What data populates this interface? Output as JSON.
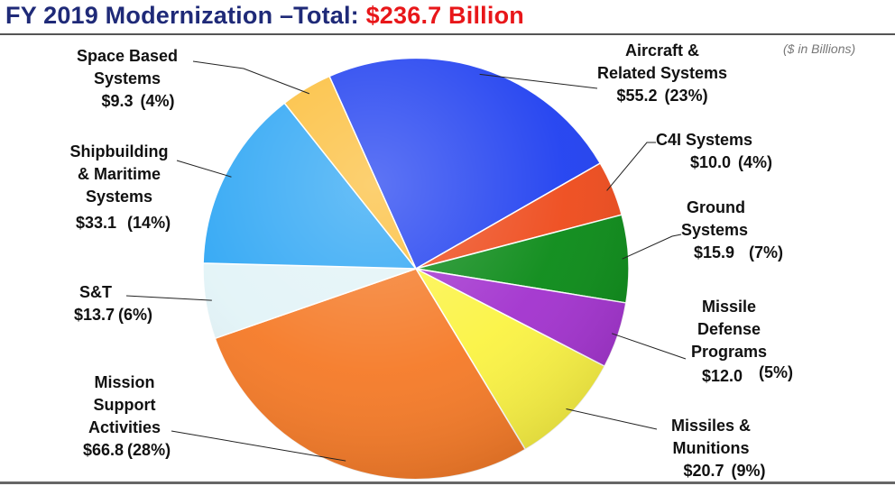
{
  "header": {
    "title_prefix": "FY 2019 Modernization –Total:",
    "title_amount": "$236.7 Billion",
    "units_note": "($ in Billions)"
  },
  "chart_data": {
    "type": "pie",
    "total": 236.7,
    "slices": [
      {
        "key": "aircraft",
        "name_lines": [
          "Aircraft &",
          "Related Systems"
        ],
        "value": 55.2,
        "value_label": "$55.2",
        "percent_label": "(23%)",
        "color": "#1f3ff0"
      },
      {
        "key": "c4i",
        "name_lines": [
          "C4I Systems"
        ],
        "value": 10.0,
        "value_label": "$10.0",
        "percent_label": "(4%)",
        "color": "#ee4a1b"
      },
      {
        "key": "ground",
        "name_lines": [
          "Ground",
          "Systems"
        ],
        "value": 15.9,
        "value_label": "$15.9",
        "percent_label": "(7%)",
        "color": "#0a8a17"
      },
      {
        "key": "missile_defense",
        "name_lines": [
          "Missile",
          "Defense",
          "Programs"
        ],
        "value": 12.0,
        "value_label": "$12.0",
        "percent_label": "(5%)",
        "color": "#a232ce"
      },
      {
        "key": "missiles",
        "name_lines": [
          "Missiles &",
          "Munitions"
        ],
        "value": 20.7,
        "value_label": "$20.7",
        "percent_label": "(9%)",
        "color": "#fbf343"
      },
      {
        "key": "mission_support",
        "name_lines": [
          "Mission",
          "Support",
          "Activities"
        ],
        "value": 66.8,
        "value_label": "$66.8",
        "percent_label": "(28%)",
        "color": "#f57a27"
      },
      {
        "key": "st",
        "name_lines": [
          "S&T"
        ],
        "value": 13.7,
        "value_label": "$13.7",
        "percent_label": "(6%)",
        "color": "#e2f3f7"
      },
      {
        "key": "shipbuilding",
        "name_lines": [
          "Shipbuilding",
          "& Maritime",
          "Systems"
        ],
        "value": 33.1,
        "value_label": "$33.1",
        "percent_label": "(14%)",
        "color": "#2ea6f4"
      },
      {
        "key": "space",
        "name_lines": [
          "Space Based",
          "Systems"
        ],
        "value": 9.3,
        "value_label": "$9.3",
        "percent_label": "(4%)",
        "color": "#fbbe3a"
      }
    ]
  }
}
